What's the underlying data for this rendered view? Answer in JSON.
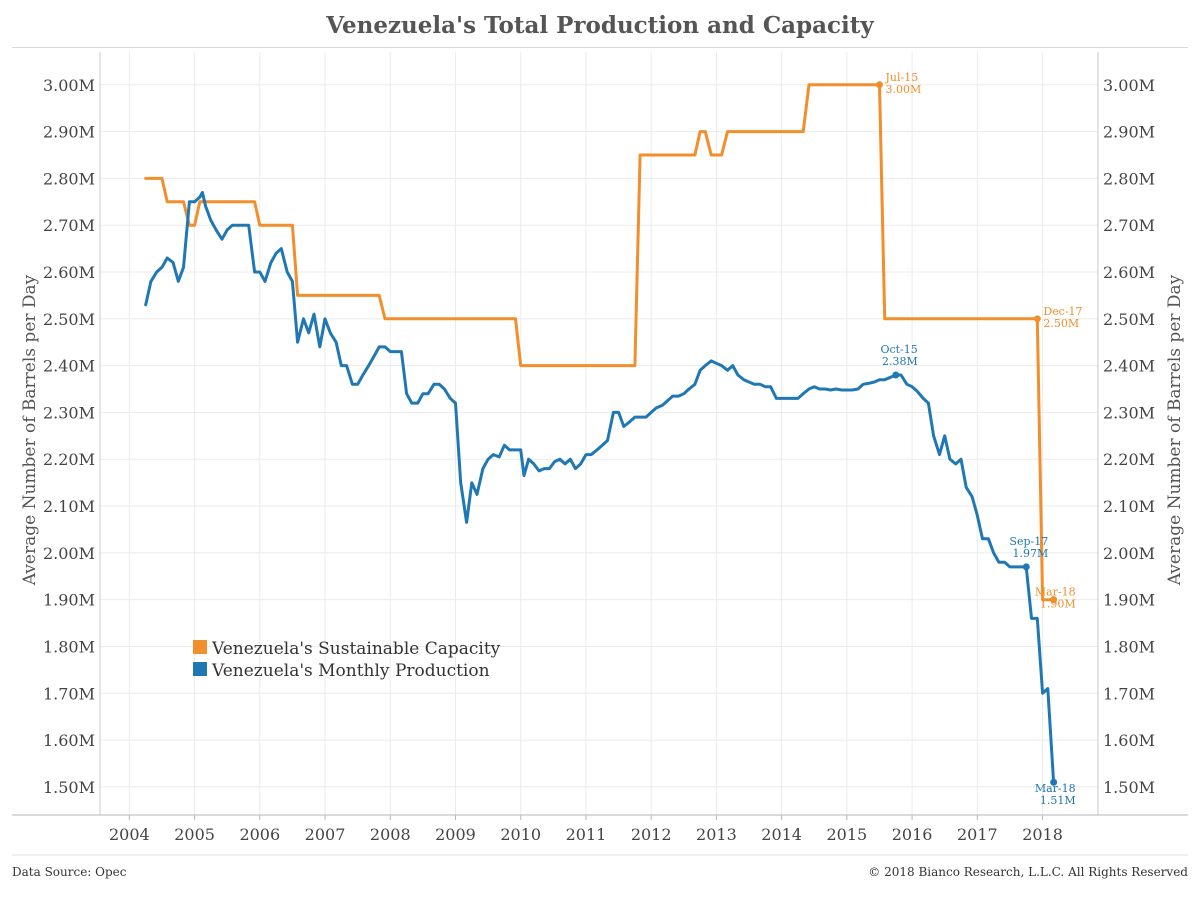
{
  "title": "Venezuela's Total Production and Capacity",
  "footer": {
    "source": "Data Source: Opec",
    "copyright": "© 2018 Bianco Research, L.L.C. All Rights Reserved"
  },
  "chart_data": {
    "type": "line",
    "title": "Venezuela's Total Production and Capacity",
    "ylabel_left": "Average Number of Barrels per Day",
    "ylabel_right": "Average Number of Barrels per Day",
    "ylim": [
      1.44,
      3.07
    ],
    "yticks": [
      {
        "value": 1.5,
        "label": "1.50M"
      },
      {
        "value": 1.6,
        "label": "1.60M"
      },
      {
        "value": 1.7,
        "label": "1.70M"
      },
      {
        "value": 1.8,
        "label": "1.80M"
      },
      {
        "value": 1.9,
        "label": "1.90M"
      },
      {
        "value": 2.0,
        "label": "2.00M"
      },
      {
        "value": 2.1,
        "label": "2.10M"
      },
      {
        "value": 2.2,
        "label": "2.20M"
      },
      {
        "value": 2.3,
        "label": "2.30M"
      },
      {
        "value": 2.4,
        "label": "2.40M"
      },
      {
        "value": 2.5,
        "label": "2.50M"
      },
      {
        "value": 2.6,
        "label": "2.60M"
      },
      {
        "value": 2.7,
        "label": "2.70M"
      },
      {
        "value": 2.8,
        "label": "2.80M"
      },
      {
        "value": 2.9,
        "label": "2.90M"
      },
      {
        "value": 3.0,
        "label": "3.00M"
      }
    ],
    "xlim": [
      2003.55,
      2018.85
    ],
    "xticks": [
      "2004",
      "2005",
      "2006",
      "2007",
      "2008",
      "2009",
      "2010",
      "2011",
      "2012",
      "2013",
      "2014",
      "2015",
      "2016",
      "2017",
      "2018"
    ],
    "grid": true,
    "legend_position": "lower-left",
    "series": [
      {
        "name": "Venezuela's Sustainable Capacity",
        "color": "#f28e2b",
        "points": [
          [
            2004.25,
            2.8
          ],
          [
            2004.5,
            2.8
          ],
          [
            2004.58,
            2.75
          ],
          [
            2004.83,
            2.75
          ],
          [
            2004.92,
            2.7
          ],
          [
            2005.0,
            2.7
          ],
          [
            2005.08,
            2.75
          ],
          [
            2005.92,
            2.75
          ],
          [
            2006.0,
            2.7
          ],
          [
            2006.5,
            2.7
          ],
          [
            2006.58,
            2.55
          ],
          [
            2007.83,
            2.55
          ],
          [
            2007.92,
            2.5
          ],
          [
            2009.92,
            2.5
          ],
          [
            2010.0,
            2.4
          ],
          [
            2011.75,
            2.4
          ],
          [
            2011.83,
            2.85
          ],
          [
            2012.67,
            2.85
          ],
          [
            2012.75,
            2.9
          ],
          [
            2012.83,
            2.9
          ],
          [
            2012.92,
            2.85
          ],
          [
            2013.08,
            2.85
          ],
          [
            2013.17,
            2.9
          ],
          [
            2014.33,
            2.9
          ],
          [
            2014.42,
            3.0
          ],
          [
            2015.5,
            3.0
          ],
          [
            2015.58,
            2.5
          ],
          [
            2017.92,
            2.5
          ],
          [
            2018.0,
            1.9
          ],
          [
            2018.17,
            1.9
          ]
        ]
      },
      {
        "name": "Venezuela's Monthly Production",
        "color": "#1f77b4",
        "points": [
          [
            2004.25,
            2.53
          ],
          [
            2004.33,
            2.58
          ],
          [
            2004.42,
            2.6
          ],
          [
            2004.5,
            2.61
          ],
          [
            2004.58,
            2.63
          ],
          [
            2004.67,
            2.62
          ],
          [
            2004.75,
            2.58
          ],
          [
            2004.83,
            2.61
          ],
          [
            2004.92,
            2.75
          ],
          [
            2005.0,
            2.75
          ],
          [
            2005.08,
            2.76
          ],
          [
            2005.12,
            2.77
          ],
          [
            2005.17,
            2.74
          ],
          [
            2005.25,
            2.71
          ],
          [
            2005.33,
            2.69
          ],
          [
            2005.42,
            2.67
          ],
          [
            2005.5,
            2.69
          ],
          [
            2005.58,
            2.7
          ],
          [
            2005.67,
            2.7
          ],
          [
            2005.75,
            2.7
          ],
          [
            2005.83,
            2.7
          ],
          [
            2005.92,
            2.6
          ],
          [
            2006.0,
            2.6
          ],
          [
            2006.08,
            2.58
          ],
          [
            2006.17,
            2.62
          ],
          [
            2006.25,
            2.64
          ],
          [
            2006.33,
            2.65
          ],
          [
            2006.42,
            2.6
          ],
          [
            2006.5,
            2.58
          ],
          [
            2006.58,
            2.45
          ],
          [
            2006.67,
            2.5
          ],
          [
            2006.75,
            2.47
          ],
          [
            2006.83,
            2.51
          ],
          [
            2006.92,
            2.44
          ],
          [
            2007.0,
            2.5
          ],
          [
            2007.08,
            2.47
          ],
          [
            2007.17,
            2.45
          ],
          [
            2007.25,
            2.4
          ],
          [
            2007.33,
            2.4
          ],
          [
            2007.42,
            2.36
          ],
          [
            2007.5,
            2.36
          ],
          [
            2007.58,
            2.38
          ],
          [
            2007.67,
            2.4
          ],
          [
            2007.75,
            2.42
          ],
          [
            2007.83,
            2.44
          ],
          [
            2007.92,
            2.44
          ],
          [
            2008.0,
            2.43
          ],
          [
            2008.08,
            2.43
          ],
          [
            2008.17,
            2.43
          ],
          [
            2008.25,
            2.34
          ],
          [
            2008.33,
            2.32
          ],
          [
            2008.42,
            2.32
          ],
          [
            2008.5,
            2.34
          ],
          [
            2008.58,
            2.34
          ],
          [
            2008.67,
            2.36
          ],
          [
            2008.75,
            2.36
          ],
          [
            2008.83,
            2.35
          ],
          [
            2008.92,
            2.33
          ],
          [
            2009.0,
            2.32
          ],
          [
            2009.08,
            2.15
          ],
          [
            2009.17,
            2.065
          ],
          [
            2009.25,
            2.15
          ],
          [
            2009.33,
            2.125
          ],
          [
            2009.42,
            2.18
          ],
          [
            2009.5,
            2.2
          ],
          [
            2009.58,
            2.21
          ],
          [
            2009.67,
            2.205
          ],
          [
            2009.75,
            2.23
          ],
          [
            2009.83,
            2.22
          ],
          [
            2009.92,
            2.22
          ],
          [
            2010.0,
            2.22
          ],
          [
            2010.05,
            2.165
          ],
          [
            2010.12,
            2.2
          ],
          [
            2010.2,
            2.19
          ],
          [
            2010.28,
            2.175
          ],
          [
            2010.36,
            2.18
          ],
          [
            2010.44,
            2.18
          ],
          [
            2010.52,
            2.195
          ],
          [
            2010.6,
            2.2
          ],
          [
            2010.68,
            2.19
          ],
          [
            2010.76,
            2.2
          ],
          [
            2010.84,
            2.18
          ],
          [
            2010.92,
            2.19
          ],
          [
            2011.0,
            2.21
          ],
          [
            2011.08,
            2.21
          ],
          [
            2011.17,
            2.22
          ],
          [
            2011.25,
            2.23
          ],
          [
            2011.33,
            2.24
          ],
          [
            2011.42,
            2.3
          ],
          [
            2011.5,
            2.3
          ],
          [
            2011.58,
            2.27
          ],
          [
            2011.67,
            2.28
          ],
          [
            2011.75,
            2.29
          ],
          [
            2011.83,
            2.29
          ],
          [
            2011.92,
            2.29
          ],
          [
            2012.0,
            2.3
          ],
          [
            2012.08,
            2.31
          ],
          [
            2012.17,
            2.315
          ],
          [
            2012.25,
            2.325
          ],
          [
            2012.33,
            2.335
          ],
          [
            2012.42,
            2.335
          ],
          [
            2012.5,
            2.34
          ],
          [
            2012.58,
            2.35
          ],
          [
            2012.67,
            2.36
          ],
          [
            2012.75,
            2.39
          ],
          [
            2012.83,
            2.4
          ],
          [
            2012.92,
            2.41
          ],
          [
            2013.0,
            2.405
          ],
          [
            2013.08,
            2.4
          ],
          [
            2013.17,
            2.39
          ],
          [
            2013.25,
            2.4
          ],
          [
            2013.33,
            2.38
          ],
          [
            2013.42,
            2.37
          ],
          [
            2013.5,
            2.365
          ],
          [
            2013.58,
            2.36
          ],
          [
            2013.67,
            2.36
          ],
          [
            2013.75,
            2.355
          ],
          [
            2013.83,
            2.355
          ],
          [
            2013.92,
            2.33
          ],
          [
            2014.0,
            2.33
          ],
          [
            2014.08,
            2.33
          ],
          [
            2014.17,
            2.33
          ],
          [
            2014.25,
            2.33
          ],
          [
            2014.33,
            2.34
          ],
          [
            2014.42,
            2.35
          ],
          [
            2014.5,
            2.355
          ],
          [
            2014.58,
            2.35
          ],
          [
            2014.67,
            2.35
          ],
          [
            2014.75,
            2.348
          ],
          [
            2014.83,
            2.35
          ],
          [
            2014.92,
            2.348
          ],
          [
            2015.0,
            2.348
          ],
          [
            2015.08,
            2.348
          ],
          [
            2015.17,
            2.35
          ],
          [
            2015.25,
            2.36
          ],
          [
            2015.33,
            2.362
          ],
          [
            2015.42,
            2.365
          ],
          [
            2015.5,
            2.37
          ],
          [
            2015.58,
            2.37
          ],
          [
            2015.67,
            2.375
          ],
          [
            2015.75,
            2.38
          ],
          [
            2015.83,
            2.38
          ],
          [
            2015.92,
            2.36
          ],
          [
            2016.0,
            2.355
          ],
          [
            2016.08,
            2.345
          ],
          [
            2016.17,
            2.33
          ],
          [
            2016.25,
            2.32
          ],
          [
            2016.33,
            2.25
          ],
          [
            2016.42,
            2.21
          ],
          [
            2016.5,
            2.25
          ],
          [
            2016.58,
            2.2
          ],
          [
            2016.67,
            2.19
          ],
          [
            2016.75,
            2.2
          ],
          [
            2016.83,
            2.14
          ],
          [
            2016.92,
            2.12
          ],
          [
            2017.0,
            2.08
          ],
          [
            2017.08,
            2.03
          ],
          [
            2017.17,
            2.03
          ],
          [
            2017.25,
            2.0
          ],
          [
            2017.33,
            1.98
          ],
          [
            2017.42,
            1.98
          ],
          [
            2017.5,
            1.97
          ],
          [
            2017.58,
            1.97
          ],
          [
            2017.67,
            1.97
          ],
          [
            2017.75,
            1.97
          ],
          [
            2017.83,
            1.86
          ],
          [
            2017.92,
            1.86
          ],
          [
            2018.0,
            1.7
          ],
          [
            2018.08,
            1.71
          ],
          [
            2018.17,
            1.51
          ]
        ]
      }
    ],
    "annotations": [
      {
        "series": 0,
        "x": 2015.5,
        "y": 3.0,
        "date": "Jul-15",
        "value": "3.00M",
        "align": "start"
      },
      {
        "series": 0,
        "x": 2017.92,
        "y": 2.5,
        "date": "Dec-17",
        "value": "2.50M",
        "align": "start"
      },
      {
        "series": 0,
        "x": 2018.17,
        "y": 1.9,
        "date": "Mar-18",
        "value": "1.90M",
        "align": "end"
      },
      {
        "series": 1,
        "x": 2015.75,
        "y": 2.38,
        "date": "Oct-15",
        "value": "2.38M",
        "align": "end"
      },
      {
        "series": 1,
        "x": 2017.75,
        "y": 1.97,
        "date": "Sep-17",
        "value": "1.97M",
        "align": "end"
      },
      {
        "series": 1,
        "x": 2018.17,
        "y": 1.51,
        "date": "Mar-18",
        "value": "1.51M",
        "align": "end"
      }
    ]
  }
}
